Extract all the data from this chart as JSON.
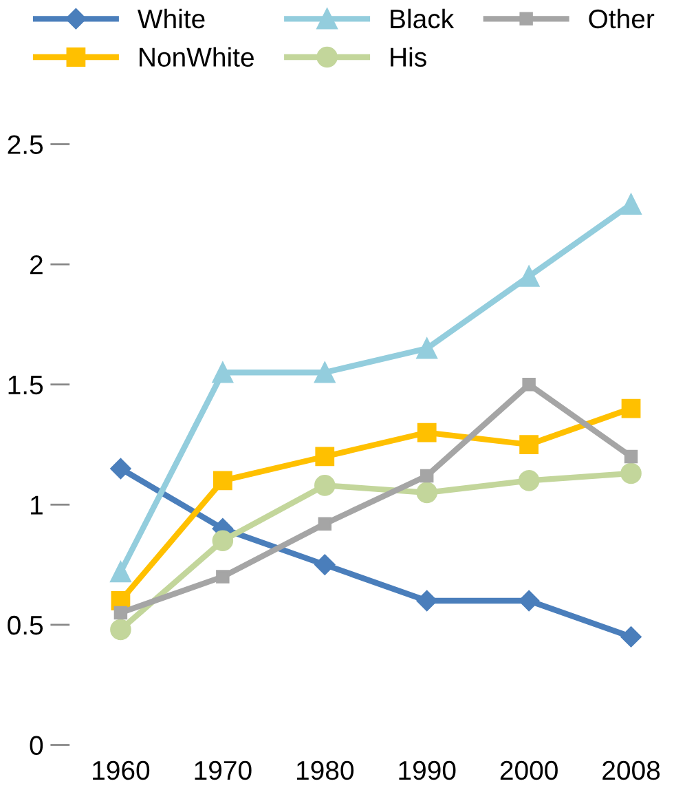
{
  "chart_data": {
    "type": "line",
    "categories": [
      "1960",
      "1970",
      "1980",
      "1990",
      "2000",
      "2008"
    ],
    "ylim": [
      0,
      2.5
    ],
    "yticks": [
      0,
      0.5,
      1,
      1.5,
      2,
      2.5
    ],
    "grid": false,
    "legend": "top",
    "series": [
      {
        "name": "White",
        "color": "#4a7ebb",
        "marker": "diamond",
        "values": [
          1.15,
          0.9,
          0.75,
          0.6,
          0.6,
          0.45
        ]
      },
      {
        "name": "NonWhite",
        "color": "#ffc000",
        "marker": "square",
        "values": [
          0.6,
          1.1,
          1.2,
          1.3,
          1.25,
          1.4
        ]
      },
      {
        "name": "Black",
        "color": "#93cddd",
        "marker": "triangle",
        "values": [
          0.72,
          1.55,
          1.55,
          1.65,
          1.95,
          2.25
        ]
      },
      {
        "name": "His",
        "color": "#c3d69b",
        "marker": "circle",
        "values": [
          0.48,
          0.85,
          1.08,
          1.05,
          1.1,
          1.13
        ]
      },
      {
        "name": "Other",
        "color": "#a5a5a5",
        "marker": "square",
        "values": [
          0.55,
          0.7,
          0.92,
          1.12,
          1.5,
          1.2
        ]
      }
    ]
  }
}
